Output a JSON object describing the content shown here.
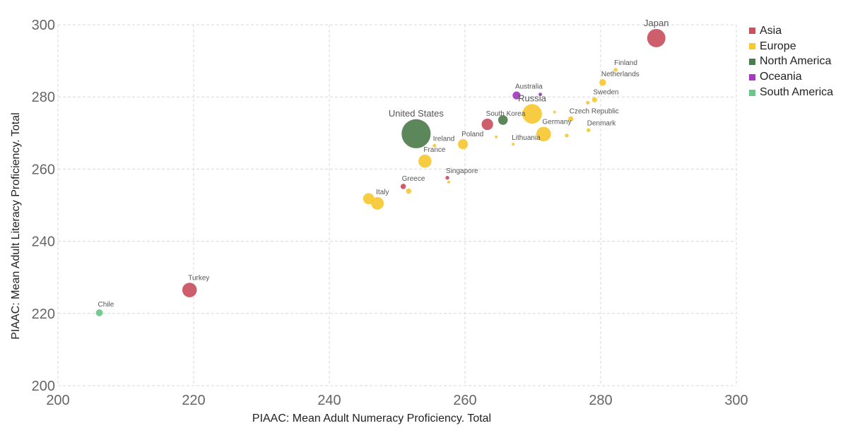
{
  "chart_data": {
    "type": "scatter",
    "title": "",
    "xlabel": "PIAAC: Mean Adult Numeracy Proficiency. Total",
    "ylabel": "PIAAC: Mean Adult Literacy Proficiency. Total",
    "xlim": [
      200,
      300
    ],
    "ylim": [
      200,
      300
    ],
    "xticks": [
      200,
      220,
      240,
      260,
      280,
      300
    ],
    "yticks": [
      200,
      220,
      240,
      260,
      280,
      300
    ],
    "grid": true,
    "legend_position": "top-right",
    "legend": [
      {
        "name": "Asia",
        "color": "#c9515f"
      },
      {
        "name": "Europe",
        "color": "#f6c832"
      },
      {
        "name": "North America",
        "color": "#4d7d4d"
      },
      {
        "name": "Oceania",
        "color": "#a23bbf"
      },
      {
        "name": "South America",
        "color": "#6cc58a"
      }
    ],
    "points": [
      {
        "label": "Japan",
        "region": "Asia",
        "x": 288.2,
        "y": 296.3,
        "size": 127,
        "label_show": true
      },
      {
        "label": "Finland",
        "region": "Europe",
        "x": 282.2,
        "y": 287.5,
        "size": 5.5,
        "label_show": true
      },
      {
        "label": "Netherlands",
        "region": "Europe",
        "x": 280.3,
        "y": 284.0,
        "size": 16.9,
        "label_show": true
      },
      {
        "label": "Australia",
        "region": "Oceania",
        "x": 267.6,
        "y": 280.4,
        "size": 23.8,
        "label_show": true
      },
      {
        "label": "",
        "region": "Oceania",
        "x": 271.1,
        "y": 280.7,
        "size": 4.5,
        "label_show": false
      },
      {
        "label": "Sweden",
        "region": "Europe",
        "x": 279.1,
        "y": 279.2,
        "size": 9.9,
        "label_show": true
      },
      {
        "label": "",
        "region": "Europe",
        "x": 278.1,
        "y": 278.4,
        "size": 5.4,
        "label_show": false
      },
      {
        "label": "Russia",
        "region": "Europe",
        "x": 269.9,
        "y": 275.3,
        "size": 144,
        "label_show": true
      },
      {
        "label": "",
        "region": "Europe",
        "x": 273.2,
        "y": 275.8,
        "size": 2.0,
        "label_show": false
      },
      {
        "label": "Czech Republic",
        "region": "Europe",
        "x": 275.6,
        "y": 273.9,
        "size": 10.5,
        "label_show": true
      },
      {
        "label": "South Korea",
        "region": "Asia",
        "x": 263.3,
        "y": 272.4,
        "size": 50,
        "label_show": true
      },
      {
        "label": "",
        "region": "North America",
        "x": 265.6,
        "y": 273.6,
        "size": 35,
        "label_show": false
      },
      {
        "label": "Denmark",
        "region": "Europe",
        "x": 278.2,
        "y": 270.8,
        "size": 5.6,
        "label_show": true
      },
      {
        "label": "Germany",
        "region": "Europe",
        "x": 271.6,
        "y": 269.7,
        "size": 81,
        "label_show": true
      },
      {
        "label": "",
        "region": "Europe",
        "x": 275.0,
        "y": 269.3,
        "size": 5.4,
        "label_show": false
      },
      {
        "label": "United States",
        "region": "North America",
        "x": 252.8,
        "y": 269.8,
        "size": 320,
        "label_show": true
      },
      {
        "label": "",
        "region": "Europe",
        "x": 264.6,
        "y": 268.9,
        "size": 1.4,
        "label_show": false
      },
      {
        "label": "Poland",
        "region": "Europe",
        "x": 259.7,
        "y": 266.9,
        "size": 38,
        "label_show": true
      },
      {
        "label": "Lithuania",
        "region": "Europe",
        "x": 267.1,
        "y": 266.9,
        "size": 2.9,
        "label_show": true
      },
      {
        "label": "Ireland",
        "region": "Europe",
        "x": 255.5,
        "y": 266.5,
        "size": 4.6,
        "label_show": true
      },
      {
        "label": "France",
        "region": "Europe",
        "x": 254.1,
        "y": 262.2,
        "size": 65,
        "label_show": true
      },
      {
        "label": "Singapore",
        "region": "Asia",
        "x": 257.4,
        "y": 257.6,
        "size": 5.6,
        "label_show": true
      },
      {
        "label": "",
        "region": "Europe",
        "x": 257.6,
        "y": 256.4,
        "size": 2.0,
        "label_show": false
      },
      {
        "label": "Greece",
        "region": "Asia",
        "x": 250.9,
        "y": 255.2,
        "size": 10.8,
        "label_show": true
      },
      {
        "label": "",
        "region": "Europe",
        "x": 251.7,
        "y": 253.9,
        "size": 10.8,
        "label_show": false
      },
      {
        "label": "",
        "region": "Europe",
        "x": 245.8,
        "y": 251.8,
        "size": 46,
        "label_show": false
      },
      {
        "label": "Italy",
        "region": "Europe",
        "x": 247.1,
        "y": 250.5,
        "size": 60,
        "label_show": true
      },
      {
        "label": "Turkey",
        "region": "Asia",
        "x": 219.4,
        "y": 226.5,
        "size": 80,
        "label_show": true
      },
      {
        "label": "Chile",
        "region": "South America",
        "x": 206.1,
        "y": 220.2,
        "size": 18,
        "label_show": true
      }
    ]
  }
}
